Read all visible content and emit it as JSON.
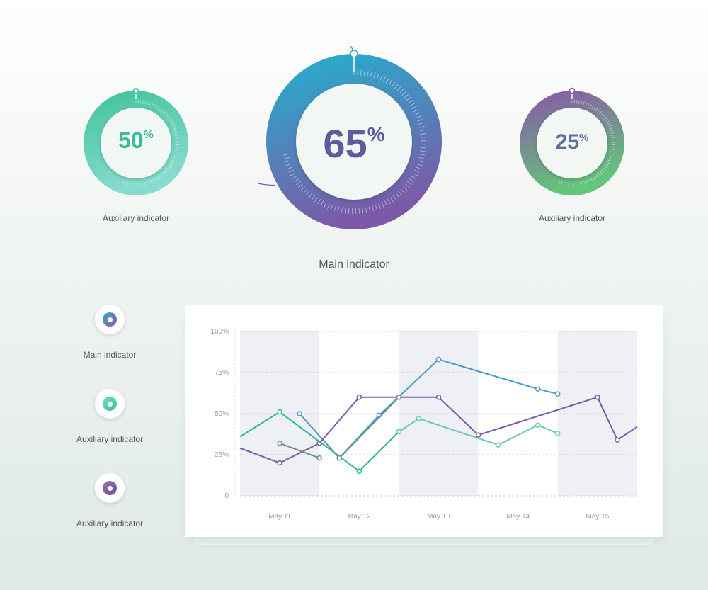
{
  "gauges": [
    {
      "id": "aux-left",
      "value": 50,
      "label": "Auxiliary indicator",
      "colors": [
        "#3fc29a",
        "#88dccf"
      ],
      "text_color": "#3fb99a"
    },
    {
      "id": "main",
      "value": 65,
      "label": "Main indicator",
      "colors": [
        "#22b3cf",
        "#7a5aa8"
      ],
      "text_color": "#5d5c9c"
    },
    {
      "id": "aux-right",
      "value": 25,
      "label": "Auxiliary indicator",
      "colors": [
        "#8a54a8",
        "#63c67a"
      ],
      "text_color": "#5e6e9c"
    }
  ],
  "legend": [
    {
      "label": "Main indicator",
      "colors": [
        "#30a9cf",
        "#8b5aa4"
      ]
    },
    {
      "label": "Auxiliary indicator",
      "colors": [
        "#6ee0c1",
        "#3bbf9e"
      ]
    },
    {
      "label": "Auxiliary indicator",
      "colors": [
        "#a06fb5",
        "#6a4d94"
      ]
    }
  ],
  "chart_data": {
    "type": "line",
    "categories": [
      "May 11",
      "May 12",
      "May 13",
      "May 14",
      "May 15"
    ],
    "y_ticks": [
      "0",
      "25%",
      "50%",
      "75%",
      "100%"
    ],
    "ylim": [
      0,
      100
    ],
    "grid": true,
    "series": [
      {
        "color": "#4a9cc6",
        "x": [
          11.75,
          12.25,
          12.75,
          13.5,
          14.75,
          15.0
        ],
        "values": [
          50,
          23,
          49,
          83,
          65,
          62
        ]
      },
      {
        "color": "#7a5aa8",
        "x": [
          11.0,
          11.5,
          12.0,
          12.5,
          13.5,
          14.0,
          15.5,
          15.75,
          16.0
        ],
        "values": [
          29,
          20,
          32,
          60,
          60,
          37,
          60,
          34,
          42
        ]
      },
      {
        "color": "#2fb98e",
        "x": [
          11.0,
          11.5,
          12.5,
          13.0
        ],
        "values": [
          36,
          51,
          15,
          39
        ]
      },
      {
        "color": "#6c8f8c",
        "x": [
          11.5,
          12.0
        ],
        "values": [
          32,
          23
        ]
      },
      {
        "color": "#6c8f8c",
        "x": [
          12.25,
          13.0
        ],
        "values": [
          23,
          60
        ]
      },
      {
        "color": "#6cc8b0",
        "x": [
          13.0,
          13.25,
          14.25,
          14.75,
          15.0
        ],
        "values": [
          39,
          47,
          31,
          43,
          38
        ]
      }
    ]
  }
}
